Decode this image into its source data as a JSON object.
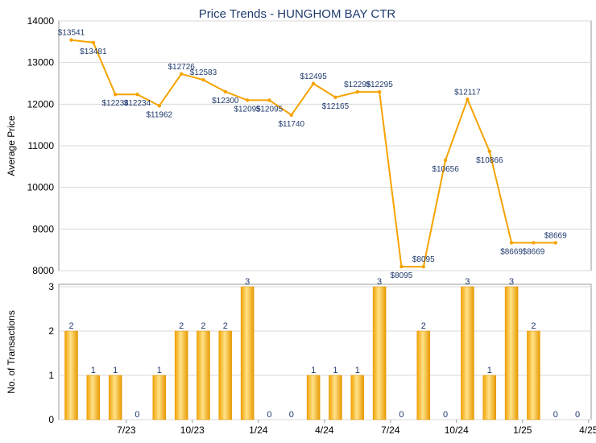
{
  "chart_data": [
    {
      "type": "line",
      "title": "Price Trends - HUNGHOM BAY CTR",
      "xlabel": "",
      "ylabel": "Average Price",
      "ylim": [
        8000,
        14000
      ],
      "yticks": [
        8000,
        9000,
        10000,
        11000,
        12000,
        13000,
        14000
      ],
      "grid": true,
      "color": "#f5a300",
      "series": [
        {
          "values": [
            13541,
            13481,
            12234,
            12234,
            11962,
            12726,
            12583,
            12300,
            12095,
            12095,
            11740,
            12495,
            12165,
            12295,
            12295,
            8095,
            8095,
            10656,
            12117,
            10866,
            8669,
            8669,
            8669
          ]
        }
      ],
      "point_labels": [
        "$13541",
        "$13481",
        "$12234",
        "$12234",
        "$11962",
        "$12726",
        "$12583",
        "$12300",
        "$12095",
        "$12095",
        "$11740",
        "$12495",
        "$12165",
        "$12295",
        "$12295",
        "$8095",
        "$8095",
        "$10656",
        "$12117",
        "$10866",
        "$8669",
        "$8669",
        "$8669"
      ]
    },
    {
      "type": "bar",
      "xlabel": "",
      "ylabel": "No. of Transactions",
      "ylim": [
        0,
        3
      ],
      "yticks": [
        0,
        1,
        2,
        3
      ],
      "grid": true,
      "color": "#f5a300",
      "series": [
        {
          "values": [
            2,
            1,
            1,
            0,
            1,
            2,
            2,
            2,
            3,
            0,
            0,
            1,
            1,
            1,
            3,
            0,
            2,
            0,
            3,
            1,
            3,
            2,
            0,
            0
          ]
        }
      ],
      "x_tick_labels": [
        "7/23",
        "10/23",
        "1/24",
        "4/24",
        "7/24",
        "10/24",
        "1/25",
        "4/25"
      ],
      "x_tick_positions": [
        2.5,
        5.5,
        8.5,
        11.5,
        14.5,
        17.5,
        20.5,
        23.5
      ]
    }
  ]
}
